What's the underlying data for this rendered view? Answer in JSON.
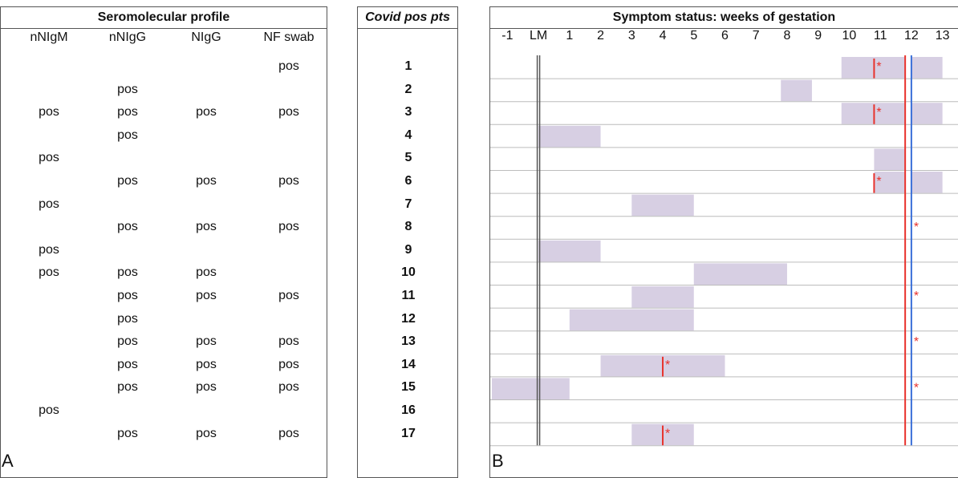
{
  "panel_a": {
    "letter": "A",
    "title": "Seromolecular profile",
    "columns": [
      "nNIgM",
      "nNIgG",
      "NIgG",
      "NF swab"
    ],
    "rows": [
      [
        "",
        "",
        "",
        "pos"
      ],
      [
        "",
        "pos",
        "",
        ""
      ],
      [
        "pos",
        "pos",
        "pos",
        "pos"
      ],
      [
        "",
        "pos",
        "",
        ""
      ],
      [
        "pos",
        "",
        "",
        ""
      ],
      [
        "",
        "pos",
        "pos",
        "pos"
      ],
      [
        "pos",
        "",
        "",
        ""
      ],
      [
        "",
        "pos",
        "pos",
        "pos"
      ],
      [
        "pos",
        "",
        "",
        ""
      ],
      [
        "pos",
        "pos",
        "pos",
        ""
      ],
      [
        "",
        "pos",
        "pos",
        "pos"
      ],
      [
        "",
        "pos",
        "",
        ""
      ],
      [
        "",
        "pos",
        "pos",
        "pos"
      ],
      [
        "",
        "pos",
        "pos",
        "pos"
      ],
      [
        "",
        "pos",
        "pos",
        "pos"
      ],
      [
        "pos",
        "",
        "",
        ""
      ],
      [
        "",
        "pos",
        "pos",
        "pos"
      ]
    ]
  },
  "patients": {
    "title": "Covid pos pts",
    "ids": [
      "1",
      "2",
      "3",
      "4",
      "5",
      "6",
      "7",
      "8",
      "9",
      "10",
      "11",
      "12",
      "13",
      "14",
      "15",
      "16",
      "17"
    ]
  },
  "panel_b": {
    "letter": "B"
  },
  "chart_data": {
    "type": "gantt",
    "title": "Symptom status: weeks of gestation",
    "x_tick_labels": [
      "-1",
      "LM",
      "1",
      "2",
      "3",
      "4",
      "5",
      "6",
      "7",
      "8",
      "9",
      "10",
      "11",
      "12",
      "13"
    ],
    "x_tick_values": [
      -1,
      0,
      1,
      2,
      3,
      4,
      5,
      6,
      7,
      8,
      9,
      10,
      11,
      12,
      13
    ],
    "xlim": [
      -1.5,
      13.5
    ],
    "reference_lines": [
      {
        "x": 0,
        "color": "#555555",
        "style": "double"
      },
      {
        "x": 11.8,
        "color": "#e8322c"
      },
      {
        "x": 12.0,
        "color": "#3a6fd8"
      }
    ],
    "rows": [
      {
        "patient": "1",
        "bars": [
          [
            9.75,
            11.8
          ],
          [
            12.0,
            13.0
          ]
        ],
        "marker_line": 10.8,
        "star": 10.8
      },
      {
        "patient": "2",
        "bars": [
          [
            7.8,
            8.8
          ]
        ],
        "marker_line": null,
        "star": null
      },
      {
        "patient": "3",
        "bars": [
          [
            9.75,
            11.8
          ],
          [
            12.0,
            13.0
          ]
        ],
        "marker_line": 10.8,
        "star": 10.8
      },
      {
        "patient": "4",
        "bars": [
          [
            0.0,
            2.0
          ]
        ],
        "marker_line": null,
        "star": null
      },
      {
        "patient": "5",
        "bars": [
          [
            10.8,
            11.8
          ]
        ],
        "marker_line": null,
        "star": null
      },
      {
        "patient": "6",
        "bars": [
          [
            10.8,
            11.8
          ],
          [
            12.0,
            13.0
          ]
        ],
        "marker_line": 10.8,
        "star": 10.8
      },
      {
        "patient": "7",
        "bars": [
          [
            3.0,
            5.0
          ]
        ],
        "marker_line": null,
        "star": null
      },
      {
        "patient": "8",
        "bars": [],
        "marker_line": null,
        "star": 12.0
      },
      {
        "patient": "9",
        "bars": [
          [
            0.0,
            2.0
          ]
        ],
        "marker_line": null,
        "star": null
      },
      {
        "patient": "10",
        "bars": [
          [
            5.0,
            8.0
          ]
        ],
        "marker_line": null,
        "star": null
      },
      {
        "patient": "11",
        "bars": [
          [
            3.0,
            5.0
          ]
        ],
        "marker_line": null,
        "star": 12.0
      },
      {
        "patient": "12",
        "bars": [
          [
            1.0,
            5.0
          ]
        ],
        "marker_line": null,
        "star": null
      },
      {
        "patient": "13",
        "bars": [],
        "marker_line": null,
        "star": 12.0
      },
      {
        "patient": "14",
        "bars": [
          [
            2.0,
            6.0
          ]
        ],
        "marker_line": 4.0,
        "star": 4.0
      },
      {
        "patient": "15",
        "bars": [
          [
            -1.5,
            1.0
          ]
        ],
        "marker_line": null,
        "star": 12.0
      },
      {
        "patient": "16",
        "bars": [],
        "marker_line": null,
        "star": null
      },
      {
        "patient": "17",
        "bars": [
          [
            3.0,
            5.0
          ]
        ],
        "marker_line": 4.0,
        "star": 4.0
      }
    ],
    "bar_color": "#d7cfe3",
    "star_symbol": "*",
    "star_color": "#e8322c",
    "grid": "horizontal"
  }
}
